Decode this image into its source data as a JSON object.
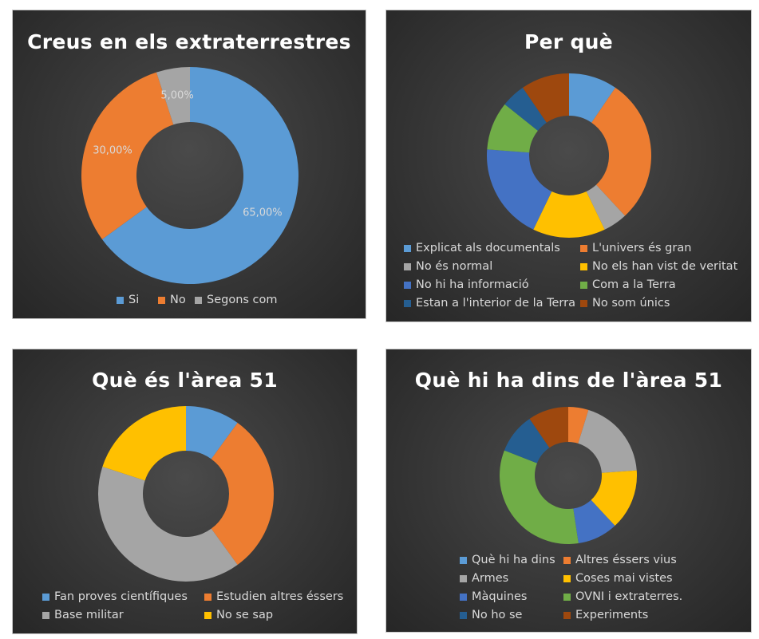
{
  "chart_data": [
    {
      "type": "donut",
      "title": "Creus en els extraterrestres",
      "categories": [
        "Si",
        "No",
        "Segons com"
      ],
      "values": [
        65,
        30,
        5
      ],
      "data_labels": [
        "65,00%",
        "30,00%",
        "5,00%"
      ],
      "colors": [
        "#5b9bd5",
        "#ed7d31",
        "#a5a5a5"
      ],
      "legend": "bottom"
    },
    {
      "type": "donut",
      "title": "Per què",
      "categories": [
        "Explicat als documentals",
        "L'univers és gran",
        "No és normal",
        "No els han vist de veritat",
        "No hi ha informació",
        "Com a la Terra",
        "Estan a l'interior de la Terra",
        "No som únics"
      ],
      "values": [
        1,
        3,
        0.5,
        1.5,
        2,
        1,
        0.5,
        1
      ],
      "colors": [
        "#5b9bd5",
        "#ed7d31",
        "#a5a5a5",
        "#ffc000",
        "#4472c4",
        "#70ad47",
        "#255e91",
        "#9e480e"
      ],
      "legend": "bottom"
    },
    {
      "type": "donut",
      "title": "Què és l'àrea 51",
      "categories": [
        "Fan proves científiques",
        "Estudien altres éssers",
        "Base militar",
        "No se sap"
      ],
      "values": [
        1,
        3,
        4,
        2
      ],
      "colors": [
        "#5b9bd5",
        "#ed7d31",
        "#a5a5a5",
        "#ffc000"
      ],
      "legend": "bottom"
    },
    {
      "type": "donut",
      "title": "Què hi ha dins de l'àrea 51",
      "categories": [
        "Què hi ha dins",
        "Altres éssers vius",
        "Armes",
        "Coses mai vistes",
        "Màquines",
        "OVNI i extraterres.",
        "No ho se",
        "Experiments"
      ],
      "values": [
        0,
        0.5,
        2,
        1.5,
        1,
        3.5,
        1,
        1
      ],
      "colors": [
        "#5b9bd5",
        "#ed7d31",
        "#a5a5a5",
        "#ffc000",
        "#4472c4",
        "#70ad47",
        "#255e91",
        "#9e480e"
      ],
      "legend": "bottom"
    }
  ]
}
